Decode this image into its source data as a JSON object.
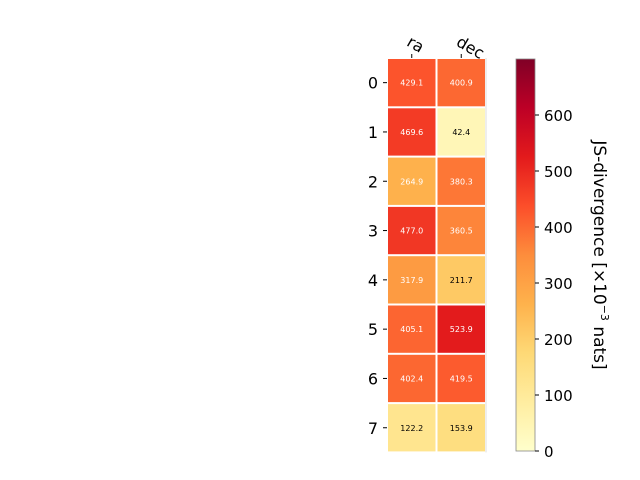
{
  "chart_data": {
    "type": "heatmap",
    "columns": [
      "ra",
      "dec"
    ],
    "rows": [
      "0",
      "1",
      "2",
      "3",
      "4",
      "5",
      "6",
      "7"
    ],
    "values": [
      [
        429.1,
        400.9
      ],
      [
        469.6,
        42.4
      ],
      [
        264.9,
        380.3
      ],
      [
        477.0,
        360.5
      ],
      [
        317.9,
        211.7
      ],
      [
        405.1,
        523.9
      ],
      [
        402.4,
        419.5
      ],
      [
        122.2,
        153.9
      ]
    ],
    "value_labels": [
      [
        "429.1",
        "400.9"
      ],
      [
        "469.6",
        "42.4"
      ],
      [
        "264.9",
        "380.3"
      ],
      [
        "477.0",
        "360.5"
      ],
      [
        "317.9",
        "211.7"
      ],
      [
        "405.1",
        "523.9"
      ],
      [
        "402.4",
        "419.5"
      ],
      [
        "122.2",
        "153.9"
      ]
    ],
    "colorbar": {
      "label_main": "JS-divergence [×10",
      "label_exp": "−3",
      "label_unit": " nats]",
      "min": 0,
      "max": 700,
      "ticks": [
        0,
        100,
        200,
        300,
        400,
        500,
        600
      ],
      "colormap": "YlOrRd"
    }
  }
}
